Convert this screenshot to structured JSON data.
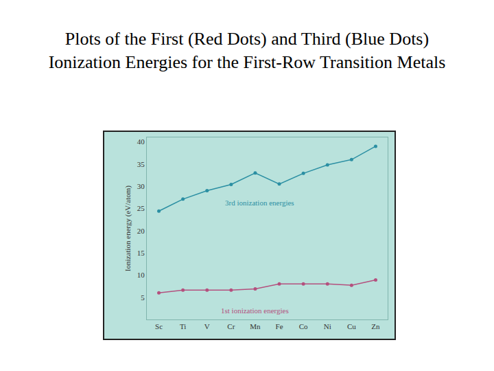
{
  "chart_data": {
    "type": "line",
    "title": "Plots of the First (Red Dots) and Third (Blue Dots) Ionization Energies for the First-Row Transition Metals",
    "y_label": "Ionization energy (eV/atom)",
    "categories": [
      "Sc",
      "Ti",
      "V",
      "Cr",
      "Mn",
      "Fe",
      "Co",
      "Ni",
      "Cu",
      "Zn"
    ],
    "series": [
      {
        "name": "3rd ionization energies",
        "color": "#2b8fa3",
        "values": [
          24.4,
          27.1,
          29.0,
          30.4,
          33.0,
          30.5,
          32.9,
          34.8,
          36.0,
          39.0
        ]
      },
      {
        "name": "1st ionization energies",
        "color": "#b4507e",
        "values": [
          6.0,
          6.6,
          6.6,
          6.6,
          6.9,
          8.0,
          8.0,
          8.0,
          7.7,
          8.9
        ]
      }
    ],
    "ylim": [
      0,
      41
    ],
    "yticks": [
      5,
      10,
      15,
      20,
      25,
      30,
      35,
      40
    ],
    "grid": false,
    "marker": "circle"
  }
}
